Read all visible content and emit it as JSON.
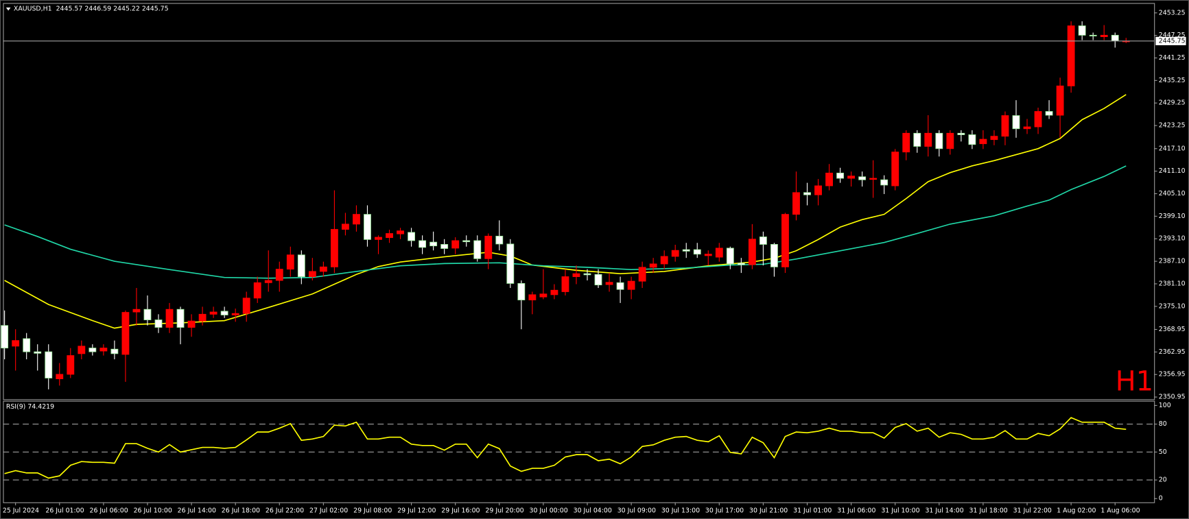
{
  "chart_data": [
    {
      "type": "candlestick",
      "title": "XAUUSD,H1  2445.57 2446.59 2445.22 2445.75",
      "watermark": "H1",
      "categories": [
        null,
        "25 Jul 2024",
        null,
        null,
        null,
        "26 Jul 01:00",
        null,
        null,
        null,
        "26 Jul 06:00",
        null,
        null,
        null,
        "26 Jul 10:00",
        null,
        null,
        null,
        "26 Jul 14:00",
        null,
        null,
        null,
        "26 Jul 18:00",
        null,
        null,
        null,
        "26 Jul 22:00",
        null,
        null,
        null,
        "27 Jul 02:00",
        null,
        null,
        null,
        "29 Jul 08:00",
        null,
        null,
        null,
        "29 Jul 12:00",
        null,
        null,
        null,
        "29 Jul 16:00",
        null,
        null,
        null,
        "29 Jul 20:00",
        null,
        null,
        null,
        "30 Jul 00:00",
        null,
        null,
        null,
        "30 Jul 04:00",
        null,
        null,
        null,
        "30 Jul 09:00",
        null,
        null,
        null,
        "30 Jul 13:00",
        null,
        null,
        null,
        "30 Jul 17:00",
        null,
        null,
        null,
        "30 Jul 21:00",
        null,
        null,
        null,
        "31 Jul 01:00",
        null,
        null,
        null,
        "31 Jul 06:00",
        null,
        null,
        null,
        "31 Jul 10:00",
        null,
        null,
        null,
        "31 Jul 14:00",
        null,
        null,
        null,
        "31 Jul 18:00",
        null,
        null,
        null,
        "31 Jul 22:00",
        null,
        null,
        null,
        "1 Aug 02:00",
        null,
        null,
        null,
        "1 Aug 06:00",
        null
      ],
      "open": [
        2370,
        2364.5,
        2366.5,
        2363,
        2363,
        2355.8,
        2357,
        2362.5,
        2364,
        2363.2,
        2363.7,
        2362.3,
        2373.6,
        2374.3,
        2371.5,
        2369.5,
        2374.3,
        2369.5,
        2371.2,
        2373,
        2373.8,
        2372.8,
        2373.2,
        2377.3,
        2381.4,
        2382,
        2385,
        2388.8,
        2383,
        2384.4,
        2385.6,
        2395.6,
        2397,
        2399.6,
        2392.9,
        2393.4,
        2394.4,
        2394.8,
        2392.6,
        2392.2,
        2391.6,
        2390.6,
        2392.6,
        2392.6,
        2387.8,
        2393.8,
        2391.7,
        2381.2,
        2376.8,
        2377.6,
        2378.2,
        2379,
        2383,
        2383.8,
        2383.6,
        2380.9,
        2381.4,
        2379.6,
        2381.8,
        2385.5,
        2386.4,
        2388.4,
        2390.2,
        2390.2,
        2388.6,
        2388.2,
        2390.6,
        2386.6,
        2386.2,
        2393.6,
        2391.6,
        2385.6,
        2399.6,
        2405.4,
        2404.8,
        2407.2,
        2410.6,
        2409.2,
        2409.6,
        2408.9,
        2408.8,
        2407.2,
        2416.2,
        2421.2,
        2417.7,
        2421.2,
        2417.1,
        2421.2,
        2420.8,
        2418.4,
        2419.5,
        2420.4,
        2425.9,
        2422.4,
        2422.9,
        2427,
        2426,
        2433.8,
        2449.8,
        2447.3,
        2446.9,
        2447.3,
        2445.57
      ],
      "high": [
        2374,
        2369,
        2368,
        2365,
        2365,
        2360,
        2364,
        2366,
        2365,
        2365,
        2366,
        2374,
        2380,
        2378,
        2373,
        2376,
        2375,
        2373,
        2375,
        2375,
        2375,
        2374.5,
        2379,
        2383,
        2390,
        2387,
        2391,
        2390,
        2388,
        2387,
        2406,
        2400,
        2402,
        2402,
        2394,
        2395.5,
        2396,
        2396,
        2394,
        2395,
        2393,
        2393.5,
        2394,
        2394,
        2394.5,
        2398,
        2393,
        2382,
        2379,
        2385,
        2381,
        2385,
        2386,
        2385,
        2385,
        2384,
        2383,
        2383,
        2387,
        2388,
        2390,
        2391.5,
        2392,
        2392,
        2390,
        2392,
        2391,
        2388,
        2397,
        2395,
        2392,
        2400,
        2411,
        2408,
        2409,
        2413,
        2412,
        2411,
        2411,
        2414,
        2410,
        2417,
        2422,
        2422,
        2426,
        2422,
        2422,
        2422,
        2422,
        2422,
        2422,
        2427,
        2430,
        2425,
        2428,
        2430,
        2436,
        2451,
        2451,
        2448,
        2450,
        2448,
        2446.59
      ],
      "low": [
        2361,
        2358,
        2361,
        2358,
        2353,
        2354,
        2356,
        2361,
        2362,
        2362,
        2361,
        2355,
        2370,
        2370,
        2368,
        2368,
        2365,
        2367,
        2370,
        2372,
        2372,
        2371,
        2371,
        2376,
        2379,
        2379,
        2383,
        2381,
        2382,
        2383,
        2384,
        2394,
        2395,
        2391,
        2389,
        2392,
        2393,
        2391,
        2389,
        2390,
        2389,
        2389,
        2391,
        2387,
        2385,
        2390,
        2380,
        2369,
        2373,
        2377,
        2377,
        2378,
        2381,
        2382,
        2380,
        2379,
        2376,
        2377,
        2380,
        2384,
        2385,
        2387,
        2388,
        2388,
        2386,
        2387,
        2385,
        2384,
        2385,
        2386,
        2383,
        2384,
        2398,
        2402,
        2402,
        2406,
        2408,
        2407,
        2407,
        2404,
        2405,
        2406,
        2414,
        2416,
        2415,
        2415,
        2415.5,
        2419,
        2417,
        2417,
        2418,
        2418,
        2420,
        2421,
        2421,
        2425,
        2420,
        2432,
        2446,
        2446,
        2446,
        2444,
        2445.22
      ],
      "close": [
        2364,
        2366,
        2363,
        2362.6,
        2356,
        2357,
        2362,
        2364.5,
        2363,
        2364,
        2362.5,
        2373.5,
        2374.3,
        2371.5,
        2369.5,
        2374.3,
        2369.5,
        2371.2,
        2373,
        2373.6,
        2372.8,
        2373.2,
        2377.3,
        2381.4,
        2382,
        2385,
        2388.8,
        2383,
        2384.4,
        2385.6,
        2395.6,
        2397,
        2399.6,
        2392.9,
        2393.5,
        2394.5,
        2395.2,
        2392.6,
        2390.8,
        2391.2,
        2390.5,
        2392.6,
        2392.3,
        2387.8,
        2393.8,
        2391.7,
        2381.2,
        2376.8,
        2378.2,
        2378.4,
        2379.4,
        2383,
        2383.8,
        2383.5,
        2380.8,
        2381.5,
        2379.6,
        2381.8,
        2385.5,
        2386.4,
        2388.4,
        2390,
        2389.8,
        2389,
        2389,
        2390.6,
        2386.4,
        2386.2,
        2393,
        2391.6,
        2385.6,
        2399.6,
        2405.4,
        2404.8,
        2407.2,
        2410.6,
        2409.2,
        2409.8,
        2408.8,
        2409.2,
        2407.4,
        2416.2,
        2421.2,
        2417.7,
        2421.2,
        2417.1,
        2421.2,
        2420.8,
        2418.2,
        2419.6,
        2420.4,
        2425.9,
        2422.4,
        2422.9,
        2427,
        2426,
        2433.8,
        2449.8,
        2447.3,
        2447.1,
        2447.3,
        2445.8,
        2445.75
      ],
      "up_color": "#ff0000",
      "down_color": "#ffffff",
      "ylim": [
        2350.35,
        2455.67
      ],
      "yticks": [
        2350.95,
        2356.95,
        2362.95,
        2368.95,
        {
          "value": 2375.1,
          "label": "2375.10"
        },
        {
          "value": 2381.1,
          "label": "2381.10"
        },
        {
          "value": 2387.1,
          "label": "2387.10"
        },
        {
          "value": 2393.1,
          "label": "2393.10"
        },
        {
          "value": 2399.1,
          "label": "2399.10"
        },
        {
          "value": 2405.1,
          "label": "2405.10"
        },
        {
          "value": 2411.1,
          "label": "2411.10"
        },
        {
          "value": 2417.1,
          "label": "2417.10"
        },
        2423.25,
        2429.25,
        2435.25,
        2441.25,
        2447.25,
        2453.25
      ],
      "last_price": 2445.75,
      "moving_averages": [
        {
          "color": "#ffff00",
          "x": [
            0,
            4,
            8,
            10,
            12,
            16,
            20,
            24,
            28,
            30,
            32,
            34,
            36,
            40,
            44,
            46,
            48,
            52,
            56,
            60,
            64,
            68,
            70,
            72,
            74,
            76,
            78,
            80,
            82,
            84,
            86,
            88,
            90,
            92,
            94,
            96,
            98,
            100,
            102
          ],
          "values": [
            2382,
            2375.6,
            2371.3,
            2369.3,
            2370.3,
            2370.7,
            2371.3,
            2374.8,
            2378.4,
            2381,
            2383.6,
            2385.7,
            2386.9,
            2388.3,
            2389.5,
            2388.5,
            2386.1,
            2384.7,
            2383.8,
            2384.4,
            2385.9,
            2386.9,
            2387.9,
            2389.9,
            2392.9,
            2396.2,
            2398.2,
            2399.6,
            2403.8,
            2408.3,
            2410.7,
            2412.5,
            2413.9,
            2415.5,
            2417.1,
            2419.8,
            2424.8,
            2427.8,
            2431.5
          ]
        },
        {
          "color": "#20d8a8",
          "x": [
            0,
            3,
            6,
            10,
            15,
            20,
            24,
            28,
            32,
            36,
            40,
            45,
            49,
            53,
            57,
            62,
            66,
            69,
            72,
            76,
            80,
            83,
            86,
            90,
            93,
            95,
            97,
            100,
            102
          ],
          "values": [
            2396.8,
            2393.7,
            2390.3,
            2387.1,
            2384.9,
            2382.8,
            2382.6,
            2382.8,
            2384.4,
            2385.9,
            2386.5,
            2386.7,
            2385.9,
            2385.5,
            2384.9,
            2385.3,
            2386.1,
            2386.3,
            2387.7,
            2389.9,
            2392.1,
            2394.5,
            2397,
            2399.2,
            2401.8,
            2403.4,
            2406.2,
            2409.7,
            2412.5
          ]
        }
      ]
    },
    {
      "type": "line",
      "title": "RSI(9) 74.4219",
      "color": "#ffff00",
      "values": [
        26.8,
        30,
        27.6,
        27.6,
        22,
        24.4,
        35.8,
        39.8,
        39,
        39,
        38,
        59,
        59,
        54,
        50,
        58,
        50,
        52.5,
        55,
        55,
        54,
        55,
        63,
        71.5,
        71.5,
        75.6,
        80.5,
        62.6,
        64,
        66.7,
        78.9,
        78,
        82,
        64,
        64,
        65.9,
        65.9,
        58.5,
        57,
        57,
        52,
        58.5,
        58.5,
        43.9,
        58.5,
        53.7,
        35,
        29.3,
        32.5,
        32.5,
        35.8,
        44.7,
        47.2,
        47.2,
        40.7,
        42.3,
        37.4,
        44.7,
        56,
        57.7,
        62.6,
        65.9,
        66.7,
        62.6,
        61,
        67.5,
        49.6,
        48,
        65.9,
        60,
        43.9,
        66.7,
        71.5,
        70.7,
        72.4,
        75.6,
        72.4,
        72.4,
        70.7,
        70.7,
        65,
        76.4,
        80.5,
        72.4,
        75.6,
        65.9,
        70.7,
        69,
        64,
        64,
        65.9,
        73,
        64,
        64,
        70,
        67.5,
        74.8,
        87,
        82,
        82,
        82,
        75.6,
        74.4219
      ],
      "ylim": [
        -4,
        105
      ],
      "yticks": [
        0,
        20,
        50,
        80,
        100
      ],
      "levels": [
        20,
        50,
        80
      ]
    }
  ]
}
